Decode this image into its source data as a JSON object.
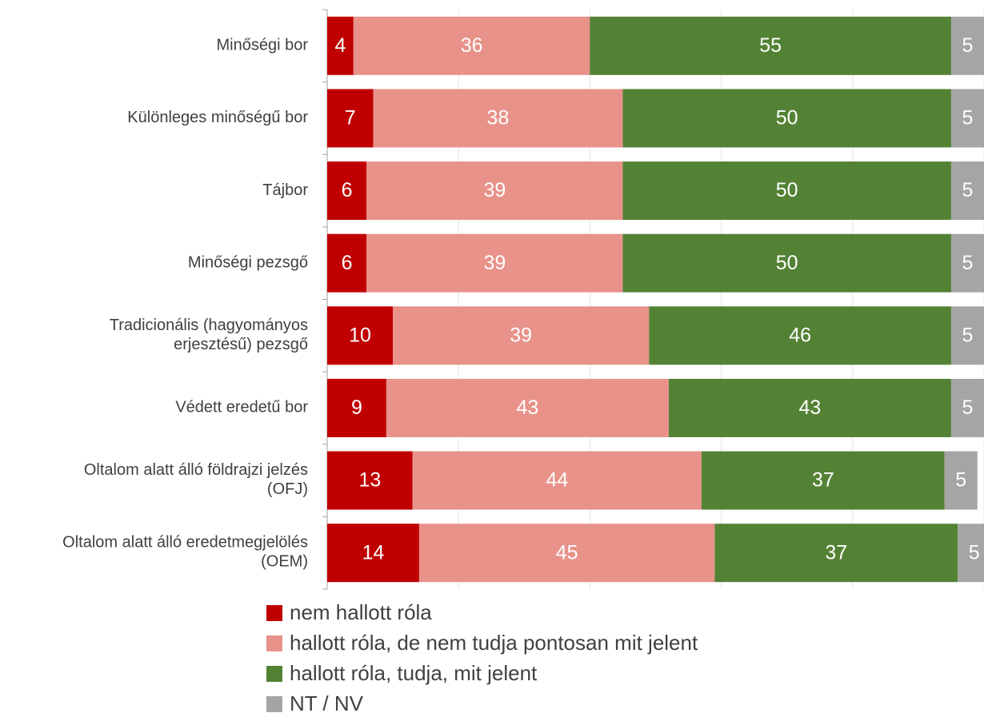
{
  "chart_data": {
    "type": "stacked_barh",
    "categories": [
      "Minőségi bor",
      "Különleges minőségű bor",
      "Tájbor",
      "Minőségi pezsgő",
      "Tradicionális (hagyományos\nerjesztésű) pezsgő",
      "Védett eredetű bor",
      "Oltalom alatt álló földrajzi jelzés\n(OFJ)",
      "Oltalom alatt álló eredetmegjelölés\n(OEM)"
    ],
    "series": [
      {
        "name": "nem hallott róla",
        "color": "#c00000",
        "values": [
          4,
          7,
          6,
          6,
          10,
          9,
          13,
          14
        ]
      },
      {
        "name": "hallott róla, de nem tudja pontosan mit jelent",
        "color": "#e8928a",
        "values": [
          36,
          38,
          39,
          39,
          39,
          43,
          44,
          45
        ]
      },
      {
        "name": "hallott róla, tudja, mit jelent",
        "color": "#548235",
        "values": [
          55,
          50,
          50,
          50,
          46,
          43,
          37,
          37
        ]
      },
      {
        "name": "NT / NV",
        "color": "#a5a5a5",
        "values": [
          5,
          5,
          5,
          5,
          5,
          5,
          5,
          5
        ]
      }
    ],
    "xlim": [
      0,
      100
    ],
    "xticks": [
      0,
      20,
      40,
      60,
      80,
      100
    ],
    "grid": true,
    "legend": "bottom"
  }
}
